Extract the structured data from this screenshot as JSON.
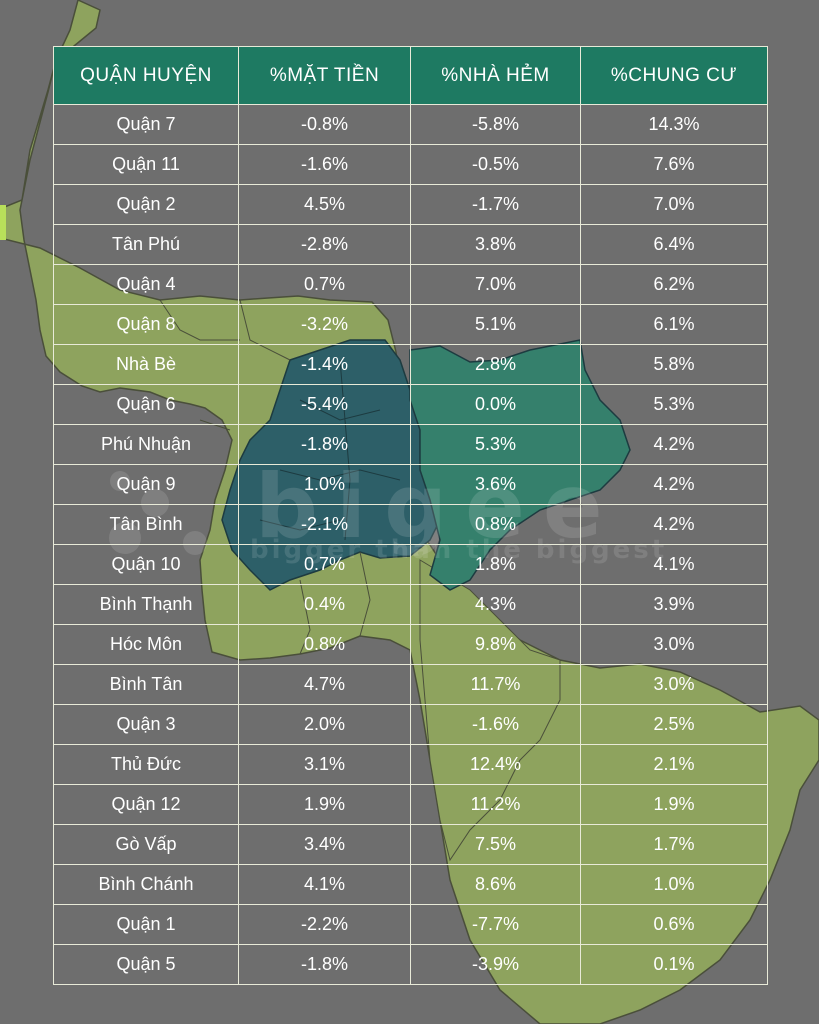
{
  "table": {
    "headers": [
      "QUẬN HUYỆN",
      "%MẶT TIỀN",
      "%NHÀ HẺM",
      "%CHUNG CƯ"
    ],
    "rows": [
      [
        "Quận 7",
        "-0.8%",
        "-5.8%",
        "14.3%"
      ],
      [
        "Quận 11",
        "-1.6%",
        "-0.5%",
        "7.6%"
      ],
      [
        "Quận 2",
        "4.5%",
        "-1.7%",
        "7.0%"
      ],
      [
        "Tân Phú",
        "-2.8%",
        "3.8%",
        "6.4%"
      ],
      [
        "Quận 4",
        "0.7%",
        "7.0%",
        "6.2%"
      ],
      [
        "Quận 8",
        "-3.2%",
        "5.1%",
        "6.1%"
      ],
      [
        "Nhà Bè",
        "-1.4%",
        "2.8%",
        "5.8%"
      ],
      [
        "Quận 6",
        "-5.4%",
        "0.0%",
        "5.3%"
      ],
      [
        "Phú Nhuận",
        "-1.8%",
        "5.3%",
        "4.2%"
      ],
      [
        "Quận 9",
        "1.0%",
        "3.6%",
        "4.2%"
      ],
      [
        "Tân Bình",
        "-2.1%",
        "0.8%",
        "4.2%"
      ],
      [
        "Quận 10",
        "0.7%",
        "1.8%",
        "4.1%"
      ],
      [
        "Bình Thạnh",
        "0.4%",
        "4.3%",
        "3.9%"
      ],
      [
        "Hóc Môn",
        "0.8%",
        "9.8%",
        "3.0%"
      ],
      [
        "Bình Tân",
        "4.7%",
        "11.7%",
        "3.0%"
      ],
      [
        "Quận 3",
        "2.0%",
        "-1.6%",
        "2.5%"
      ],
      [
        "Thủ Đức",
        "3.1%",
        "12.4%",
        "2.1%"
      ],
      [
        "Quận 12",
        "1.9%",
        "11.2%",
        "1.9%"
      ],
      [
        "Gò Vấp",
        "3.4%",
        "7.5%",
        "1.7%"
      ],
      [
        "Bình Chánh",
        "4.1%",
        "8.6%",
        "1.0%"
      ],
      [
        "Quận 1",
        "-2.2%",
        "-7.7%",
        "0.6%"
      ],
      [
        "Quận 5",
        "-1.8%",
        "-3.9%",
        "0.1%"
      ]
    ]
  },
  "watermark": {
    "brand": "bigee",
    "tagline": "bigger than the biggest"
  },
  "colors": {
    "background": "#6e6e6e",
    "map_land": "#8ea35e",
    "map_inner_dark": "#2d5f68",
    "map_inner_teal": "#35806c",
    "header_bg": "#1e7a62",
    "grid_line": "#e8ead8",
    "text": "#ffffff"
  }
}
